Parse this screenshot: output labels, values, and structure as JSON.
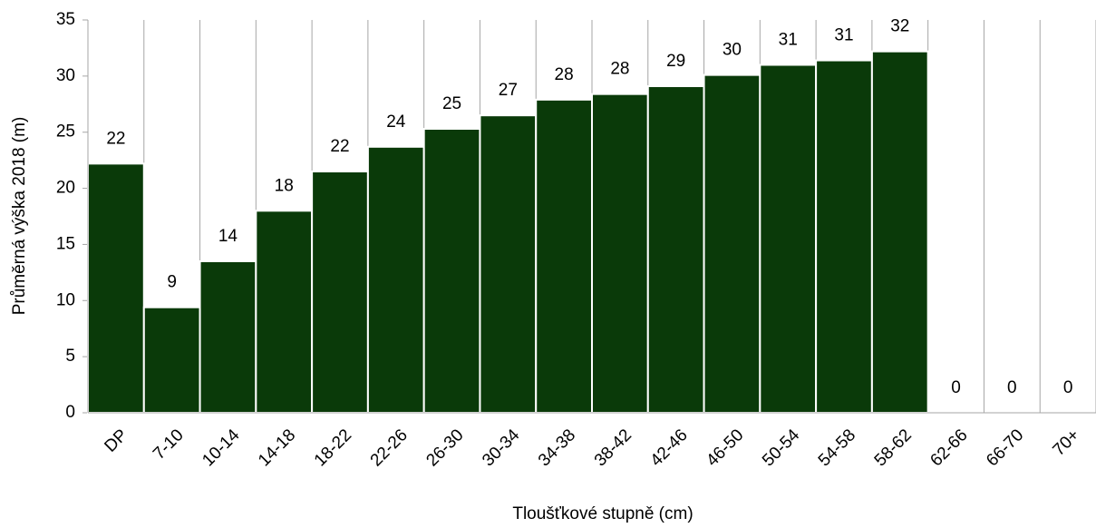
{
  "chart_data": {
    "type": "bar",
    "x_label": "Tloušťkové stupně (cm)",
    "y_label": "Průměrná výška 2018 (m)",
    "categories": [
      "DP",
      "7-10",
      "10-14",
      "14-18",
      "18-22",
      "22-26",
      "26-30",
      "30-34",
      "34-38",
      "38-42",
      "42-46",
      "46-50",
      "50-54",
      "54-58",
      "58-62",
      "62-66",
      "66-70",
      "70+"
    ],
    "values": [
      22.2,
      9.4,
      13.5,
      18.0,
      21.5,
      23.7,
      25.3,
      26.5,
      27.9,
      28.4,
      29.1,
      30.1,
      31.0,
      31.4,
      32.2,
      0,
      0,
      0
    ],
    "value_labels": [
      "22",
      "9",
      "14",
      "18",
      "22",
      "24",
      "25",
      "27",
      "28",
      "28",
      "29",
      "30",
      "31",
      "31",
      "32",
      "0",
      "0",
      "0"
    ],
    "color": "#0a3a09",
    "ylim": [
      0,
      35
    ],
    "yticks": [
      0,
      5,
      10,
      15,
      20,
      25,
      30,
      35
    ],
    "category_grid": true
  }
}
